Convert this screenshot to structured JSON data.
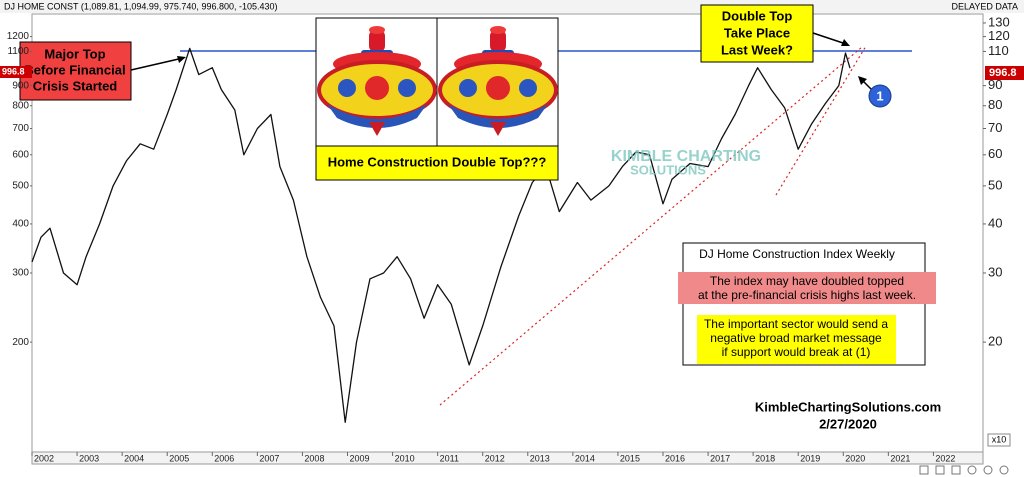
{
  "header": {
    "symbol_info": "DJ HOME CONST (1,089.81, 1,094.99, 975.740, 996.800, -105.430)",
    "data_note": "DELAYED DATA"
  },
  "chart_data": {
    "type": "line",
    "log_scale": true,
    "color": "#111111",
    "x": [
      2002.0,
      2002.2,
      2002.4,
      2002.7,
      2003.0,
      2003.2,
      2003.5,
      2003.8,
      2004.1,
      2004.4,
      2004.7,
      2005.0,
      2005.2,
      2005.5,
      2005.7,
      2006.0,
      2006.2,
      2006.5,
      2006.7,
      2007.0,
      2007.3,
      2007.5,
      2007.8,
      2008.1,
      2008.4,
      2008.7,
      2008.95,
      2009.2,
      2009.5,
      2009.8,
      2010.1,
      2010.4,
      2010.7,
      2011.0,
      2011.3,
      2011.7,
      2012.0,
      2012.4,
      2012.8,
      2013.1,
      2013.4,
      2013.7,
      2014.1,
      2014.4,
      2014.8,
      2015.1,
      2015.4,
      2015.7,
      2016.0,
      2016.2,
      2016.6,
      2017.0,
      2017.3,
      2017.6,
      2017.9,
      2018.1,
      2018.4,
      2018.7,
      2019.0,
      2019.3,
      2019.6,
      2019.9,
      2020.05,
      2020.15
    ],
    "values": [
      320,
      370,
      390,
      300,
      280,
      330,
      400,
      500,
      580,
      640,
      620,
      760,
      880,
      1120,
      960,
      1000,
      880,
      780,
      600,
      700,
      760,
      560,
      460,
      330,
      260,
      220,
      125,
      200,
      290,
      300,
      330,
      290,
      230,
      280,
      250,
      175,
      220,
      310,
      420,
      510,
      560,
      430,
      510,
      460,
      500,
      560,
      610,
      600,
      450,
      520,
      570,
      560,
      660,
      760,
      900,
      1000,
      880,
      790,
      620,
      720,
      810,
      900,
      1090,
      996.8
    ],
    "last_price": 996.8,
    "xlim": [
      2002.0,
      2023.1
    ],
    "xticks": [
      2002,
      2003,
      2004,
      2005,
      2006,
      2007,
      2008,
      2009,
      2010,
      2011,
      2012,
      2013,
      2014,
      2015,
      2016,
      2017,
      2018,
      2019,
      2020,
      2021,
      2022
    ],
    "ylim": [
      105,
      1370
    ],
    "yticks": [
      200,
      300,
      400,
      500,
      600,
      700,
      800,
      900,
      1100,
      1200
    ],
    "y2lim": [
      10.5,
      137
    ],
    "y2ticks": [
      20,
      30,
      40,
      50,
      60,
      70,
      80,
      90,
      110,
      120,
      130
    ],
    "y2_multiplier": "x10",
    "annotations": {
      "major_top": [
        "Major Top",
        "Before Financial",
        "Crisis Started"
      ],
      "double_top_question": [
        "Double Top",
        "Take Place",
        "Last Week?"
      ],
      "panel_caption": "Home Construction Double Top???",
      "support_marker": "1",
      "watermark": [
        "KIMBLE CHARTING",
        "SOLUTIONS"
      ],
      "info_title": "DJ Home Construction Index Weekly",
      "info_pink": [
        "The index may have doubled topped",
        "at the pre-financial crisis highs last week."
      ],
      "info_yellow": [
        "The important sector would send a",
        "negative broad market message",
        "if support would break at (1)"
      ],
      "source": "KimbleChartingSolutions.com",
      "date": "2/27/2020"
    }
  }
}
